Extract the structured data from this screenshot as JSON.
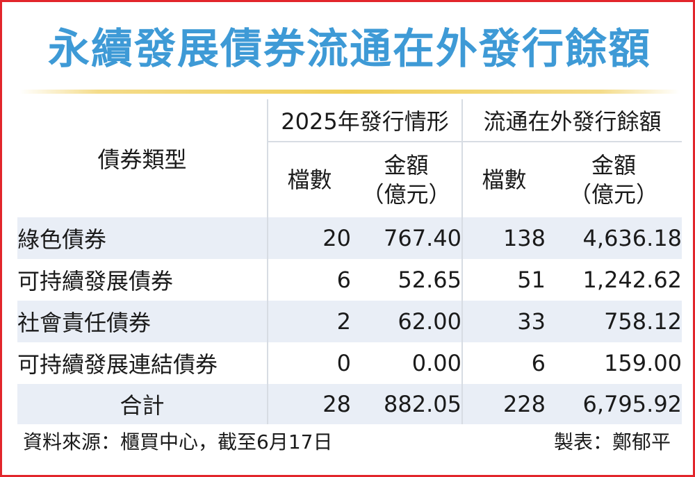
{
  "title": "永續發展債券流通在外發行餘額",
  "table": {
    "type_header": "債券類型",
    "group_2025": "2025年發行情形",
    "group_outstanding": "流通在外發行餘額",
    "col_count": "檔數",
    "col_amount_line1": "金額",
    "col_amount_line2": "（億元）",
    "rows": [
      {
        "name": "綠色債券",
        "count_2025": "20",
        "amount_2025": "767.40",
        "count_out": "138",
        "amount_out": "4,636.18"
      },
      {
        "name": "可持續發展債券",
        "count_2025": "6",
        "amount_2025": "52.65",
        "count_out": "51",
        "amount_out": "1,242.62"
      },
      {
        "name": "社會責任債券",
        "count_2025": "2",
        "amount_2025": "62.00",
        "count_out": "33",
        "amount_out": "758.12"
      },
      {
        "name": "可持續發展連結債券",
        "count_2025": "0",
        "amount_2025": "0.00",
        "count_out": "6",
        "amount_out": "159.00"
      }
    ],
    "total": {
      "name": "合計",
      "count_2025": "28",
      "amount_2025": "882.05",
      "count_out": "228",
      "amount_out": "6,795.92"
    }
  },
  "footer": {
    "source": "資料來源：櫃買中心，截至6月17日",
    "maker": "製表：鄭郁平"
  }
}
